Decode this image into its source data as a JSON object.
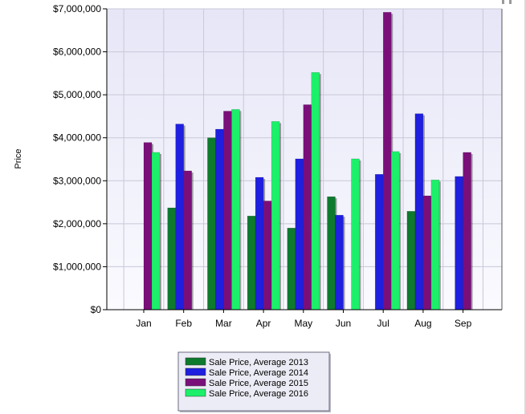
{
  "chart_data": {
    "type": "bar",
    "ylabel": "Price",
    "xlabel": "",
    "ylim": [
      0,
      7000000
    ],
    "yticks": [
      {
        "value": 0,
        "label": "$0"
      },
      {
        "value": 1000000,
        "label": "$1,000,000"
      },
      {
        "value": 2000000,
        "label": "$2,000,000"
      },
      {
        "value": 3000000,
        "label": "$3,000,000"
      },
      {
        "value": 4000000,
        "label": "$4,000,000"
      },
      {
        "value": 5000000,
        "label": "$5,000,000"
      },
      {
        "value": 6000000,
        "label": "$6,000,000"
      },
      {
        "value": 7000000,
        "label": "$7,000,000"
      }
    ],
    "categories": [
      "Jan",
      "Feb",
      "Mar",
      "Apr",
      "May",
      "Jun",
      "Jul",
      "Aug",
      "Sep"
    ],
    "series": [
      {
        "name": "Sale Price, Average 2013",
        "color": "#0e7a2e",
        "values": [
          null,
          2370000,
          4000000,
          2180000,
          1900000,
          2630000,
          null,
          2290000,
          null
        ]
      },
      {
        "name": "Sale Price, Average 2014",
        "color": "#1f1fe0",
        "values": [
          null,
          4320000,
          4200000,
          3080000,
          3510000,
          2200000,
          3150000,
          4560000,
          3100000
        ]
      },
      {
        "name": "Sale Price, Average 2015",
        "color": "#7a0f7a",
        "values": [
          3890000,
          3230000,
          4620000,
          2530000,
          4770000,
          null,
          6920000,
          2650000,
          3660000
        ]
      },
      {
        "name": "Sale Price, Average 2016",
        "color": "#1cf06a",
        "values": [
          3660000,
          null,
          4660000,
          4380000,
          5520000,
          3510000,
          3680000,
          3020000,
          null
        ]
      }
    ],
    "grid": true,
    "legend_position": "bottom-center",
    "plot_background": "#eeeef9"
  }
}
